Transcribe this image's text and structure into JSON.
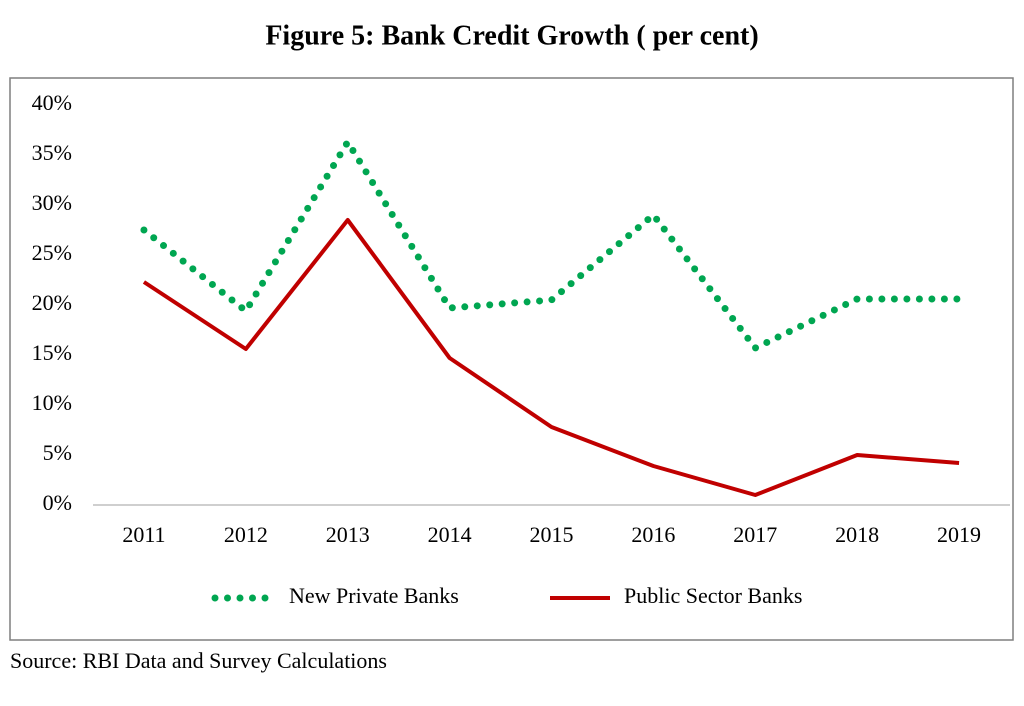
{
  "chart_data": {
    "type": "line",
    "title": "Figure 5: Bank Credit Growth ( per cent)",
    "source": "Source: RBI Data and Survey Calculations",
    "categories": [
      "2011",
      "2012",
      "2013",
      "2014",
      "2015",
      "2016",
      "2017",
      "2018",
      "2019"
    ],
    "series": [
      {
        "name": "New Private Banks",
        "color": "#00a651",
        "style": "dotted",
        "values": [
          27.5,
          19.4,
          36.3,
          19.7,
          20.5,
          29,
          15.7,
          20.6,
          20.6
        ]
      },
      {
        "name": "Public Sector Banks",
        "color": "#c00000",
        "style": "solid",
        "values": [
          22.3,
          15.6,
          28.5,
          14.7,
          7.8,
          3.9,
          1.0,
          5.0,
          4.2
        ]
      }
    ],
    "ylim": [
      0,
      40
    ],
    "yticks": [
      {
        "value": 0,
        "label": "0%"
      },
      {
        "value": 5,
        "label": "5%"
      },
      {
        "value": 10,
        "label": "10%"
      },
      {
        "value": 15,
        "label": "15%"
      },
      {
        "value": 20,
        "label": "20%"
      },
      {
        "value": 25,
        "label": "25%"
      },
      {
        "value": 30,
        "label": "30%"
      },
      {
        "value": 35,
        "label": "35%"
      },
      {
        "value": 40,
        "label": "40%"
      }
    ],
    "grid": false,
    "legend": "bottom"
  }
}
